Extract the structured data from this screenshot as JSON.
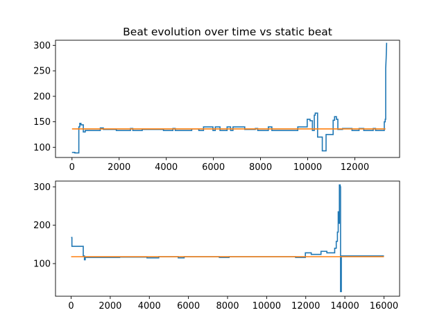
{
  "chart_data": [
    {
      "type": "line",
      "title": "Beat evolution over time vs static beat",
      "xlabel": "",
      "ylabel": "",
      "xlim": [
        -700,
        13900
      ],
      "ylim": [
        80,
        310
      ],
      "xticks": [
        0,
        2000,
        4000,
        6000,
        8000,
        10000,
        12000
      ],
      "yticks": [
        100,
        150,
        200,
        250,
        300
      ],
      "grid": false,
      "colors": {
        "evolution": "#1f77b4",
        "static": "#ff7f0e"
      },
      "series": [
        {
          "values_xy": [
            [
              0,
              90
            ],
            [
              120,
              90
            ],
            [
              120,
              89
            ],
            [
              290,
              89
            ],
            [
              290,
              140
            ],
            [
              330,
              140
            ],
            [
              330,
              147
            ],
            [
              380,
              147
            ],
            [
              380,
              144
            ],
            [
              480,
              144
            ],
            [
              480,
              130
            ],
            [
              560,
              130
            ],
            [
              560,
              133
            ],
            [
              1200,
              133
            ],
            [
              1200,
              138
            ],
            [
              1330,
              138
            ],
            [
              1330,
              135
            ],
            [
              1880,
              135
            ],
            [
              1880,
              133
            ],
            [
              2480,
              133
            ],
            [
              2480,
              137
            ],
            [
              2580,
              137
            ],
            [
              2580,
              133
            ],
            [
              2980,
              133
            ],
            [
              2980,
              135
            ],
            [
              3880,
              135
            ],
            [
              3880,
              133
            ],
            [
              4280,
              133
            ],
            [
              4280,
              137
            ],
            [
              4380,
              137
            ],
            [
              4380,
              133
            ],
            [
              5080,
              133
            ],
            [
              5080,
              136
            ],
            [
              5380,
              136
            ],
            [
              5380,
              133
            ],
            [
              5580,
              133
            ],
            [
              5580,
              140
            ],
            [
              5980,
              140
            ],
            [
              5980,
              133
            ],
            [
              6080,
              133
            ],
            [
              6080,
              140
            ],
            [
              6280,
              140
            ],
            [
              6280,
              133
            ],
            [
              6580,
              133
            ],
            [
              6580,
              140
            ],
            [
              6730,
              140
            ],
            [
              6730,
              133
            ],
            [
              6830,
              133
            ],
            [
              6830,
              140
            ],
            [
              7330,
              140
            ],
            [
              7330,
              135
            ],
            [
              7780,
              135
            ],
            [
              7780,
              137
            ],
            [
              7880,
              137
            ],
            [
              7880,
              133
            ],
            [
              8330,
              133
            ],
            [
              8330,
              140
            ],
            [
              8480,
              140
            ],
            [
              8480,
              133
            ],
            [
              9580,
              133
            ],
            [
              9580,
              140
            ],
            [
              9980,
              140
            ],
            [
              9980,
              155
            ],
            [
              10100,
              155
            ],
            [
              10100,
              152
            ],
            [
              10200,
              152
            ],
            [
              10200,
              133
            ],
            [
              10280,
              133
            ],
            [
              10280,
              163
            ],
            [
              10320,
              163
            ],
            [
              10320,
              167
            ],
            [
              10420,
              167
            ],
            [
              10420,
              120
            ],
            [
              10620,
              120
            ],
            [
              10620,
              93
            ],
            [
              10780,
              93
            ],
            [
              10780,
              125
            ],
            [
              11080,
              125
            ],
            [
              11080,
              153
            ],
            [
              11140,
              153
            ],
            [
              11140,
              160
            ],
            [
              11220,
              160
            ],
            [
              11220,
              155
            ],
            [
              11280,
              155
            ],
            [
              11280,
              135
            ],
            [
              11480,
              135
            ],
            [
              11480,
              137
            ],
            [
              11880,
              137
            ],
            [
              11880,
              133
            ],
            [
              12180,
              133
            ],
            [
              12180,
              137
            ],
            [
              12380,
              137
            ],
            [
              12380,
              133
            ],
            [
              12780,
              133
            ],
            [
              12780,
              137
            ],
            [
              12880,
              137
            ],
            [
              12880,
              133
            ],
            [
              13250,
              133
            ],
            [
              13250,
              150
            ],
            [
              13290,
              150
            ],
            [
              13290,
              155
            ],
            [
              13310,
              155
            ],
            [
              13310,
              255
            ],
            [
              13330,
              275
            ],
            [
              13350,
              305
            ]
          ]
        },
        {
          "values_xy": [
            [
              0,
              136
            ],
            [
              13300,
              136
            ]
          ]
        }
      ]
    },
    {
      "type": "line",
      "title": "",
      "xlabel": "",
      "ylabel": "",
      "xlim": [
        -800,
        16800
      ],
      "ylim": [
        15,
        315
      ],
      "xticks": [
        0,
        2000,
        4000,
        6000,
        8000,
        10000,
        12000,
        14000,
        16000
      ],
      "yticks": [
        100,
        200,
        300
      ],
      "grid": false,
      "colors": {
        "evolution": "#1f77b4",
        "static": "#ff7f0e"
      },
      "series": [
        {
          "values_xy": [
            [
              0,
              168
            ],
            [
              40,
              168
            ],
            [
              40,
              145
            ],
            [
              620,
              145
            ],
            [
              620,
              120
            ],
            [
              680,
              120
            ],
            [
              680,
              110
            ],
            [
              720,
              110
            ],
            [
              720,
              116
            ],
            [
              2480,
              116
            ],
            [
              2480,
              117
            ],
            [
              3880,
              117
            ],
            [
              3880,
              115
            ],
            [
              4480,
              115
            ],
            [
              4480,
              118
            ],
            [
              5480,
              118
            ],
            [
              5480,
              115
            ],
            [
              5780,
              115
            ],
            [
              5780,
              118
            ],
            [
              7580,
              118
            ],
            [
              7580,
              116
            ],
            [
              8080,
              116
            ],
            [
              8080,
              118
            ],
            [
              11480,
              118
            ],
            [
              11480,
              116
            ],
            [
              11980,
              116
            ],
            [
              11980,
              128
            ],
            [
              12280,
              128
            ],
            [
              12280,
              124
            ],
            [
              12780,
              124
            ],
            [
              12780,
              132
            ],
            [
              13080,
              132
            ],
            [
              13080,
              128
            ],
            [
              13480,
              128
            ],
            [
              13480,
              140
            ],
            [
              13560,
              140
            ],
            [
              13560,
              158
            ],
            [
              13620,
              158
            ],
            [
              13620,
              182
            ],
            [
              13660,
              182
            ],
            [
              13660,
              235
            ],
            [
              13700,
              235
            ],
            [
              13700,
              205
            ],
            [
              13720,
              205
            ],
            [
              13720,
              305
            ],
            [
              13760,
              305
            ],
            [
              13760,
              300
            ],
            [
              13780,
              300
            ],
            [
              13780,
              27
            ],
            [
              13820,
              27
            ],
            [
              13820,
              120
            ],
            [
              16000,
              120
            ]
          ]
        },
        {
          "values_xy": [
            [
              0,
              118
            ],
            [
              16000,
              118
            ]
          ]
        }
      ]
    }
  ]
}
